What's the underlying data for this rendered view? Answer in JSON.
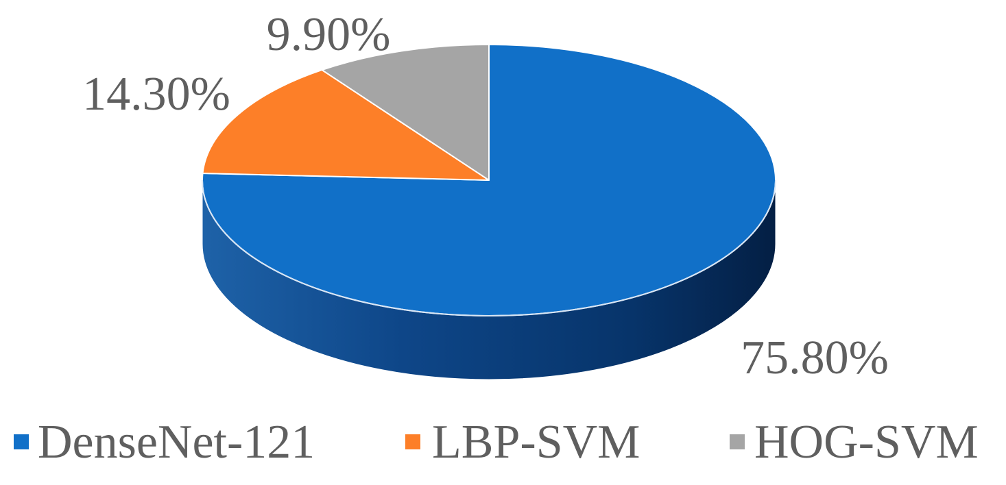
{
  "chart_data": {
    "type": "pie",
    "style": "3d",
    "categories": [
      "DenseNet-121",
      "LBP-SVM",
      "HOG-SVM"
    ],
    "values": [
      75.8,
      14.3,
      9.9
    ],
    "labels": [
      "75.80%",
      "14.30%",
      "9.90%"
    ],
    "colors": [
      "#1170C8",
      "#FD7F28",
      "#A5A5A5"
    ],
    "legend_position": "bottom",
    "start_angle": "12 o'clock",
    "direction": "clockwise"
  }
}
